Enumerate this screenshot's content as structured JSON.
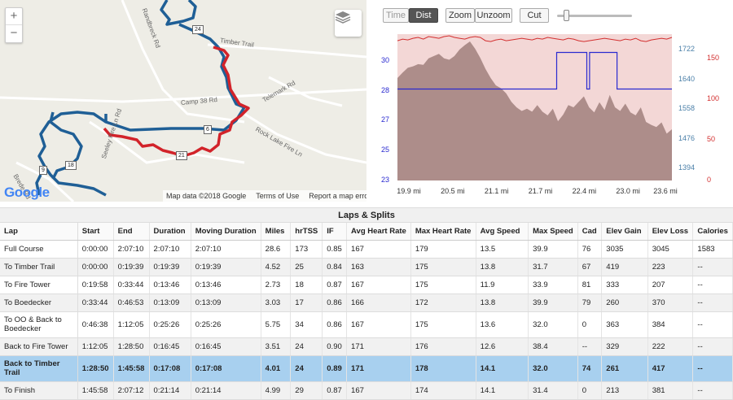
{
  "map": {
    "zoom_in": "+",
    "zoom_out": "−",
    "road_labels": [
      "Randbreck Rd",
      "Timber Trail",
      "Camp 38 Rd",
      "Telemark Rd",
      "Seeley Fire Ln Rd",
      "Rock Lake Fire Ln",
      "Brede Rd"
    ],
    "shields": [
      "24",
      "6",
      "21",
      "18",
      "9"
    ],
    "footer": {
      "map_data": "Map data ©2018 Google",
      "terms": "Terms of Use",
      "report": "Report a map erro"
    },
    "logo": "Google",
    "colors": {
      "track": "#1f5f96",
      "highlight": "#d2232a"
    }
  },
  "toolbar": {
    "time": "Time",
    "dist": "Dist",
    "zoom": "Zoom",
    "unzoom": "Unzoom",
    "cut": "Cut"
  },
  "chart_data": {
    "type": "area",
    "x_ticks": [
      "19.9 mi",
      "20.5 mi",
      "21.1 mi",
      "21.7 mi",
      "22.4 mi",
      "23.0 mi",
      "23.6 mi"
    ],
    "y_left_ticks": [
      "30",
      "28",
      "27",
      "25",
      "23"
    ],
    "y_mid_ticks": [
      "1722",
      "1640",
      "1558",
      "1476",
      "1394"
    ],
    "y_right_ticks": [
      "150",
      "100",
      "50",
      "0"
    ],
    "elevation": [
      1640,
      1655,
      1668,
      1672,
      1678,
      1676,
      1694,
      1700,
      1706,
      1694,
      1690,
      1700,
      1718,
      1730,
      1740,
      1720,
      1695,
      1665,
      1640,
      1620,
      1612,
      1598,
      1575,
      1560,
      1550,
      1556,
      1548,
      1566,
      1548,
      1538,
      1556,
      1522,
      1540,
      1566,
      1560,
      1575,
      1590,
      1560,
      1546,
      1574,
      1553,
      1594,
      1560,
      1550,
      1570,
      1546,
      1538,
      1560,
      1520,
      1512,
      1506,
      1519,
      1488,
      1500
    ],
    "heart_rate": [
      170,
      172,
      171,
      173,
      174,
      172,
      175,
      174,
      173,
      175,
      176,
      174,
      173,
      172,
      174,
      175,
      174,
      170,
      169,
      171,
      172,
      170,
      171,
      172,
      173,
      172,
      171,
      173,
      172,
      174,
      173,
      172,
      171,
      173,
      172,
      170,
      169,
      170,
      171,
      172,
      173,
      172,
      171,
      170,
      172,
      171,
      173,
      170,
      169,
      171,
      172,
      173,
      172,
      174
    ],
    "speed_steps": [
      [
        0,
        28
      ],
      [
        0.58,
        28
      ],
      [
        0.58,
        30
      ],
      [
        0.69,
        30
      ],
      [
        0.69,
        28
      ],
      [
        0.7,
        28
      ],
      [
        0.7,
        30
      ],
      [
        0.8,
        30
      ],
      [
        0.8,
        28
      ],
      [
        1,
        28
      ]
    ],
    "colors": {
      "elevation": "#a0807c",
      "heart_rate": "#d32f2f",
      "speed": "#2a2ad0",
      "bg": "#f3d7d6"
    }
  },
  "laps": {
    "title": "Laps & Splits",
    "columns": [
      "Lap",
      "Start",
      "End",
      "Duration",
      "Moving Duration",
      "Miles",
      "hrTSS",
      "IF",
      "Avg Heart Rate",
      "Max Heart Rate",
      "Avg Speed",
      "Max Speed",
      "Cad",
      "Elev Gain",
      "Elev Loss",
      "Calories"
    ],
    "rows": [
      [
        "Full Course",
        "0:00:00",
        "2:07:10",
        "2:07:10",
        "2:07:10",
        "28.6",
        "173",
        "0.85",
        "167",
        "179",
        "13.5",
        "39.9",
        "76",
        "3035",
        "3045",
        "1583"
      ],
      [
        "To Timber Trail",
        "0:00:00",
        "0:19:39",
        "0:19:39",
        "0:19:39",
        "4.52",
        "25",
        "0.84",
        "163",
        "175",
        "13.8",
        "31.7",
        "67",
        "419",
        "223",
        "--"
      ],
      [
        "To Fire Tower",
        "0:19:58",
        "0:33:44",
        "0:13:46",
        "0:13:46",
        "2.73",
        "18",
        "0.87",
        "167",
        "175",
        "11.9",
        "33.9",
        "81",
        "333",
        "207",
        "--"
      ],
      [
        "To Boedecker",
        "0:33:44",
        "0:46:53",
        "0:13:09",
        "0:13:09",
        "3.03",
        "17",
        "0.86",
        "166",
        "172",
        "13.8",
        "39.9",
        "79",
        "260",
        "370",
        "--"
      ],
      [
        "To OO & Back to Boedecker",
        "0:46:38",
        "1:12:05",
        "0:25:26",
        "0:25:26",
        "5.75",
        "34",
        "0.86",
        "167",
        "175",
        "13.6",
        "32.0",
        "0",
        "363",
        "384",
        "--"
      ],
      [
        "Back to Fire Tower",
        "1:12:05",
        "1:28:50",
        "0:16:45",
        "0:16:45",
        "3.51",
        "24",
        "0.90",
        "171",
        "176",
        "12.6",
        "38.4",
        "--",
        "329",
        "222",
        "--"
      ],
      [
        "Back to Timber Trail",
        "1:28:50",
        "1:45:58",
        "0:17:08",
        "0:17:08",
        "4.01",
        "24",
        "0.89",
        "171",
        "178",
        "14.1",
        "32.0",
        "74",
        "261",
        "417",
        "--"
      ],
      [
        "To Finish",
        "1:45:58",
        "2:07:12",
        "0:21:14",
        "0:21:14",
        "4.99",
        "29",
        "0.87",
        "167",
        "174",
        "14.1",
        "31.4",
        "0",
        "213",
        "381",
        "--"
      ]
    ],
    "selected_row": 6
  }
}
